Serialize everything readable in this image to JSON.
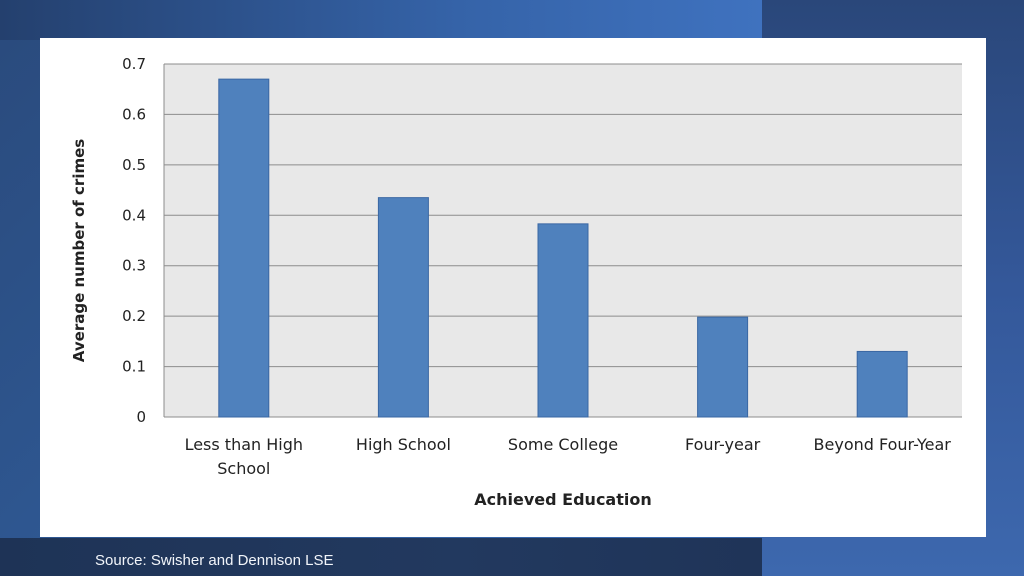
{
  "source_text": "Source:  Swisher and Dennison LSE",
  "colors": {
    "bar": "#4f81bd",
    "bar_border": "#3a67a3",
    "plot_bg": "#e8e8e8",
    "grid": "#8c8c8c"
  },
  "chart_data": {
    "type": "bar",
    "title": "",
    "xlabel": "Achieved Education",
    "ylabel": "Average number of crimes",
    "ylim": [
      0,
      0.7
    ],
    "yticks": [
      "0",
      "0.1",
      "0.2",
      "0.3",
      "0.4",
      "0.5",
      "0.6",
      "0.7"
    ],
    "grid": true,
    "legend": "none",
    "categories": [
      [
        "Less than High",
        "School"
      ],
      [
        "High School"
      ],
      [
        "Some College"
      ],
      [
        "Four-year"
      ],
      [
        "Beyond Four-Year"
      ]
    ],
    "values": [
      0.67,
      0.435,
      0.383,
      0.198,
      0.13
    ]
  }
}
